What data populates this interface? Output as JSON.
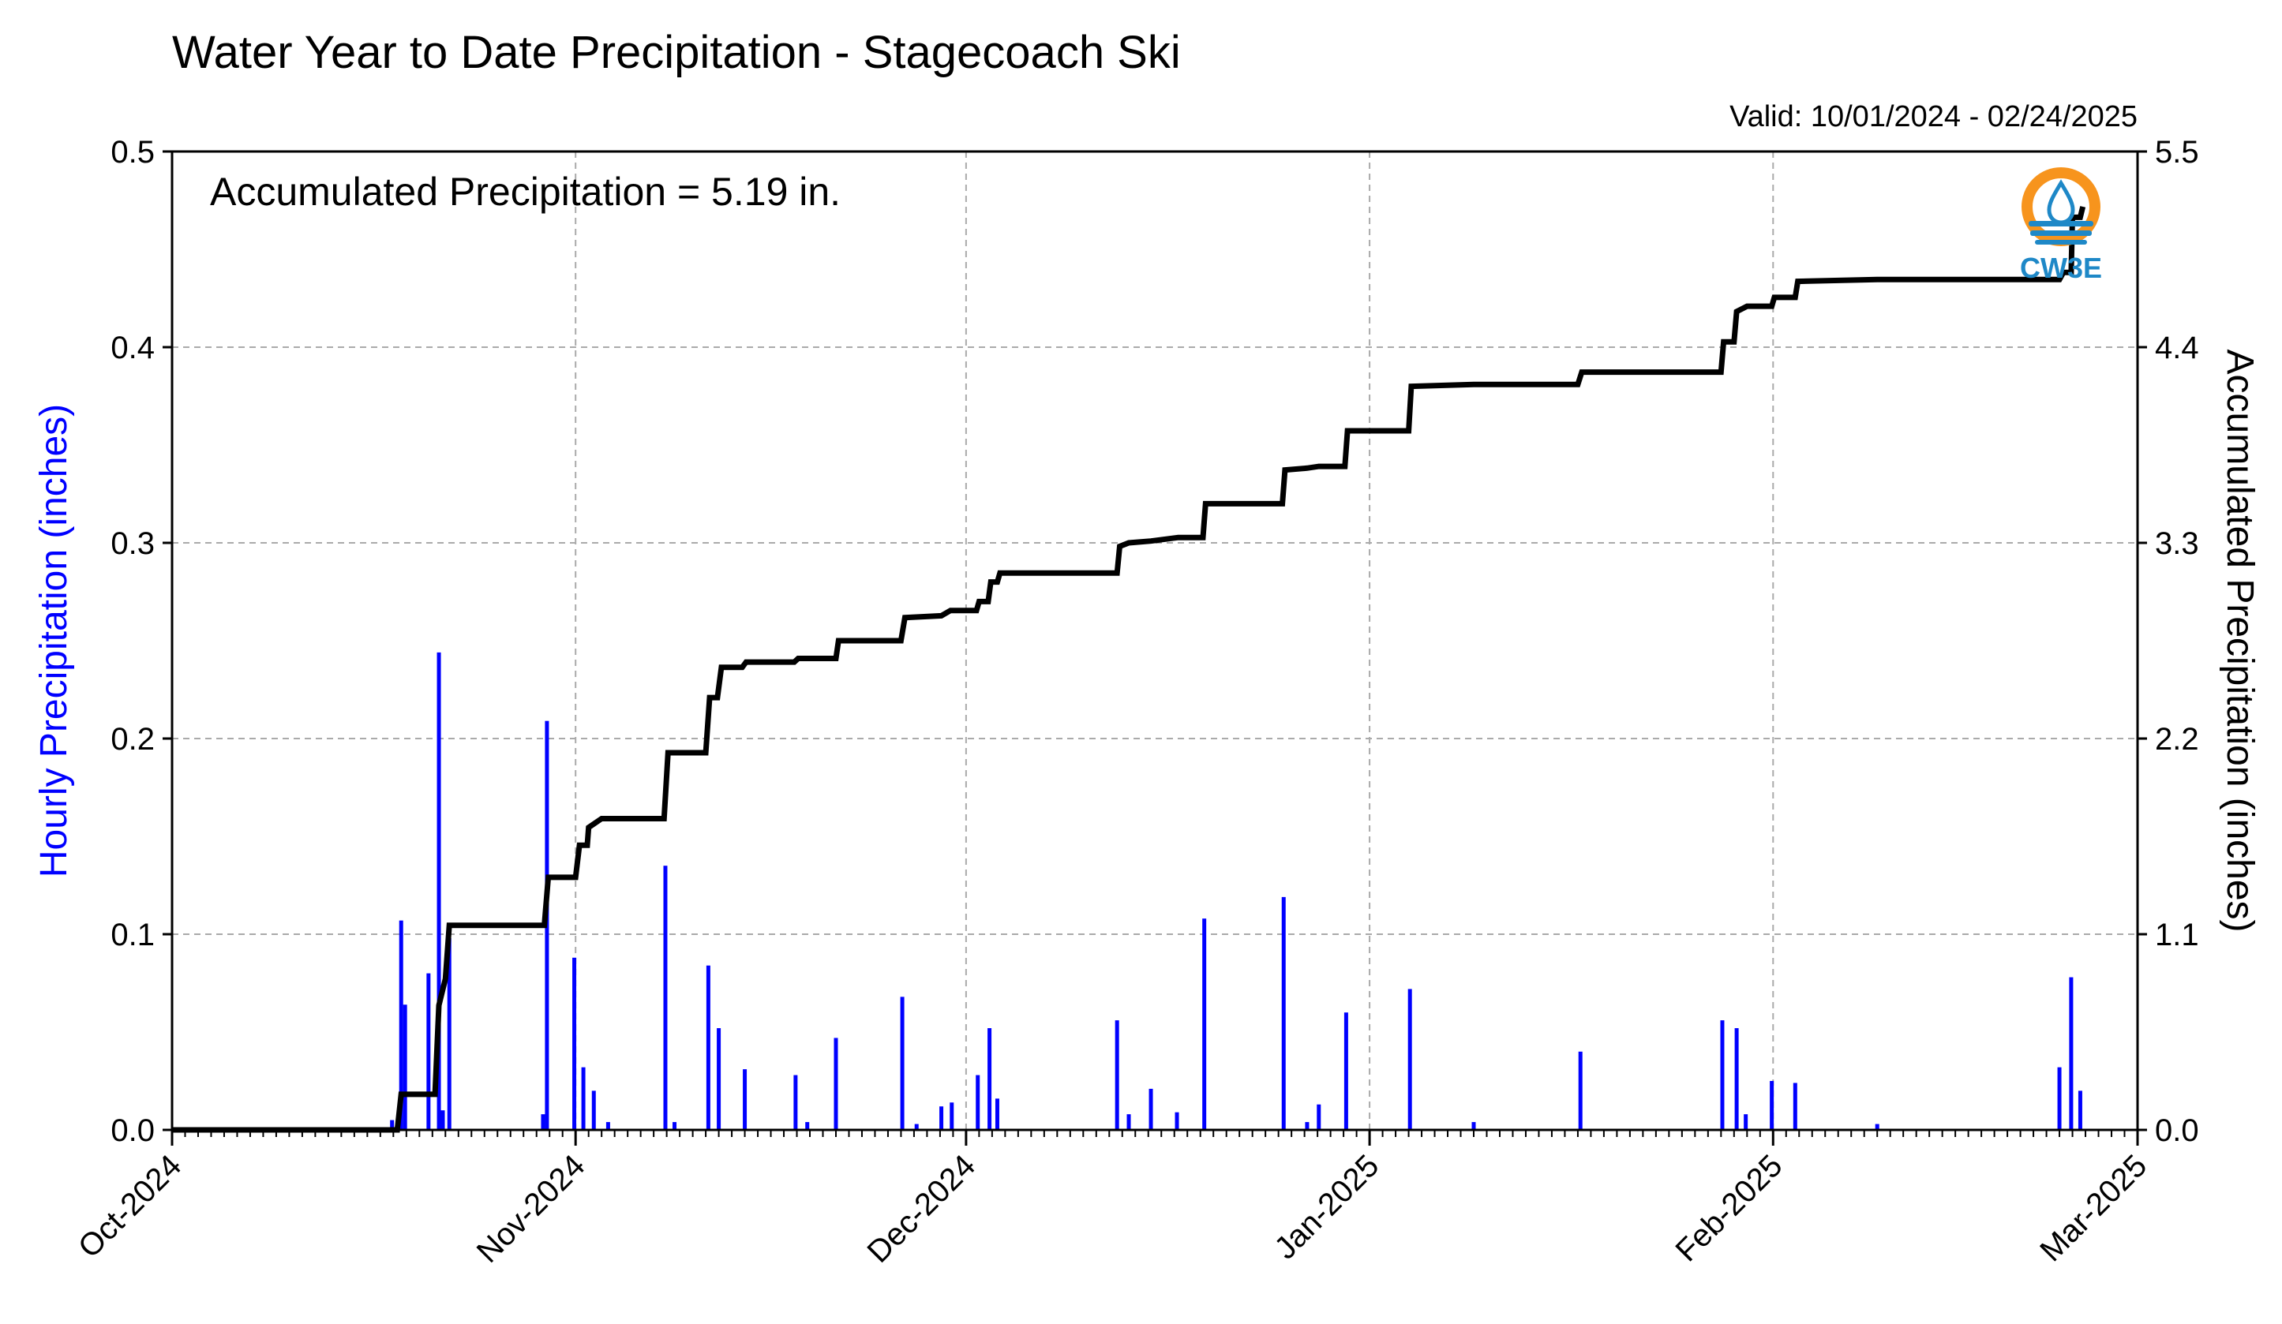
{
  "chart_data": {
    "type": "bar+line",
    "title": "Water Year to Date Precipitation - Stagecoach Ski",
    "subtitle": "Valid: 10/01/2024 - 02/24/2025",
    "annotation": "Accumulated Precipitation = 5.19 in.",
    "logo_text": "CW3E",
    "ylabel_left": "Hourly Precipitation (inches)",
    "ylabel_right": "Accumulated Precipitation (inches)",
    "ylim_left": [
      0,
      0.5
    ],
    "ylim_right": [
      0,
      5.5
    ],
    "yticks_left": [
      "0.0",
      "0.1",
      "0.2",
      "0.3",
      "0.4",
      "0.5"
    ],
    "yticks_right": [
      "0.0",
      "1.1",
      "2.2",
      "3.3",
      "4.4",
      "5.5"
    ],
    "xlim_days": [
      0,
      151
    ],
    "xticks": [
      {
        "label": "Oct-2024",
        "day": 0
      },
      {
        "label": "Nov-2024",
        "day": 31
      },
      {
        "label": "Dec-2024",
        "day": 61
      },
      {
        "label": "Jan-2025",
        "day": 92
      },
      {
        "label": "Feb-2025",
        "day": 123
      },
      {
        "label": "Mar-2025",
        "day": 151
      }
    ],
    "grid": true,
    "colors": {
      "hourly": "#0000ff",
      "accumulated": "#000000",
      "left_label": "#0000ff",
      "logo_orange": "#f7941d",
      "logo_blue": "#1e88c7"
    },
    "series": [
      {
        "name": "Hourly Precipitation",
        "type": "bar",
        "points": [
          [
            16.9,
            0.005
          ],
          [
            17.6,
            0.107
          ],
          [
            17.9,
            0.064
          ],
          [
            19.7,
            0.08
          ],
          [
            20.5,
            0.244
          ],
          [
            20.8,
            0.01
          ],
          [
            21.3,
            0.098
          ],
          [
            28.5,
            0.008
          ],
          [
            28.8,
            0.209
          ],
          [
            30.9,
            0.088
          ],
          [
            31.6,
            0.032
          ],
          [
            32.4,
            0.02
          ],
          [
            33.5,
            0.004
          ],
          [
            37.9,
            0.135
          ],
          [
            38.6,
            0.004
          ],
          [
            41.2,
            0.084
          ],
          [
            42.0,
            0.052
          ],
          [
            44.0,
            0.031
          ],
          [
            47.9,
            0.028
          ],
          [
            48.8,
            0.004
          ],
          [
            51.0,
            0.047
          ],
          [
            56.1,
            0.068
          ],
          [
            57.2,
            0.003
          ],
          [
            59.1,
            0.012
          ],
          [
            59.9,
            0.014
          ],
          [
            61.9,
            0.028
          ],
          [
            62.8,
            0.052
          ],
          [
            63.4,
            0.016
          ],
          [
            72.6,
            0.056
          ],
          [
            73.5,
            0.008
          ],
          [
            75.2,
            0.021
          ],
          [
            77.2,
            0.009
          ],
          [
            79.3,
            0.108
          ],
          [
            85.4,
            0.119
          ],
          [
            87.2,
            0.004
          ],
          [
            88.1,
            0.013
          ],
          [
            90.2,
            0.06
          ],
          [
            95.1,
            0.072
          ],
          [
            100.0,
            0.004
          ],
          [
            108.2,
            0.04
          ],
          [
            119.1,
            0.056
          ],
          [
            120.2,
            0.052
          ],
          [
            120.9,
            0.008
          ],
          [
            122.9,
            0.025
          ],
          [
            124.7,
            0.024
          ],
          [
            131.0,
            0.003
          ],
          [
            145.0,
            0.032
          ],
          [
            145.9,
            0.078
          ],
          [
            146.6,
            0.02
          ]
        ]
      },
      {
        "name": "Accumulated Precipitation",
        "type": "line",
        "points": [
          [
            0,
            0
          ],
          [
            17.3,
            0
          ],
          [
            17.6,
            0.2
          ],
          [
            20.2,
            0.2
          ],
          [
            20.5,
            0.7
          ],
          [
            21.0,
            0.85
          ],
          [
            21.3,
            1.15
          ],
          [
            28.6,
            1.15
          ],
          [
            28.9,
            1.42
          ],
          [
            31.0,
            1.42
          ],
          [
            31.3,
            1.6
          ],
          [
            31.9,
            1.6
          ],
          [
            32.0,
            1.7
          ],
          [
            33.0,
            1.75
          ],
          [
            37.8,
            1.75
          ],
          [
            38.1,
            2.12
          ],
          [
            41.0,
            2.12
          ],
          [
            41.3,
            2.43
          ],
          [
            41.9,
            2.43
          ],
          [
            42.2,
            2.6
          ],
          [
            43.8,
            2.6
          ],
          [
            44.1,
            2.63
          ],
          [
            47.8,
            2.63
          ],
          [
            48.1,
            2.65
          ],
          [
            51.0,
            2.65
          ],
          [
            51.2,
            2.75
          ],
          [
            56.0,
            2.75
          ],
          [
            56.3,
            2.88
          ],
          [
            59.1,
            2.89
          ],
          [
            59.8,
            2.92
          ],
          [
            61.8,
            2.92
          ],
          [
            62.0,
            2.97
          ],
          [
            62.7,
            2.97
          ],
          [
            62.9,
            3.08
          ],
          [
            63.4,
            3.08
          ],
          [
            63.6,
            3.13
          ],
          [
            72.6,
            3.13
          ],
          [
            72.8,
            3.28
          ],
          [
            73.5,
            3.3
          ],
          [
            75.2,
            3.31
          ],
          [
            77.3,
            3.33
          ],
          [
            79.2,
            3.33
          ],
          [
            79.4,
            3.52
          ],
          [
            85.3,
            3.52
          ],
          [
            85.5,
            3.71
          ],
          [
            87.2,
            3.72
          ],
          [
            88.1,
            3.73
          ],
          [
            90.1,
            3.73
          ],
          [
            90.3,
            3.93
          ],
          [
            95.0,
            3.93
          ],
          [
            95.2,
            4.18
          ],
          [
            100.0,
            4.19
          ],
          [
            108.0,
            4.19
          ],
          [
            108.3,
            4.26
          ],
          [
            119.0,
            4.26
          ],
          [
            119.2,
            4.43
          ],
          [
            120.0,
            4.43
          ],
          [
            120.2,
            4.6
          ],
          [
            121.0,
            4.63
          ],
          [
            122.9,
            4.63
          ],
          [
            123.1,
            4.68
          ],
          [
            124.7,
            4.68
          ],
          [
            124.9,
            4.77
          ],
          [
            131.0,
            4.78
          ],
          [
            145.0,
            4.78
          ],
          [
            145.3,
            4.82
          ],
          [
            145.9,
            4.82
          ],
          [
            146.0,
            5.13
          ],
          [
            146.6,
            5.13
          ],
          [
            146.8,
            5.19
          ]
        ]
      }
    ]
  }
}
